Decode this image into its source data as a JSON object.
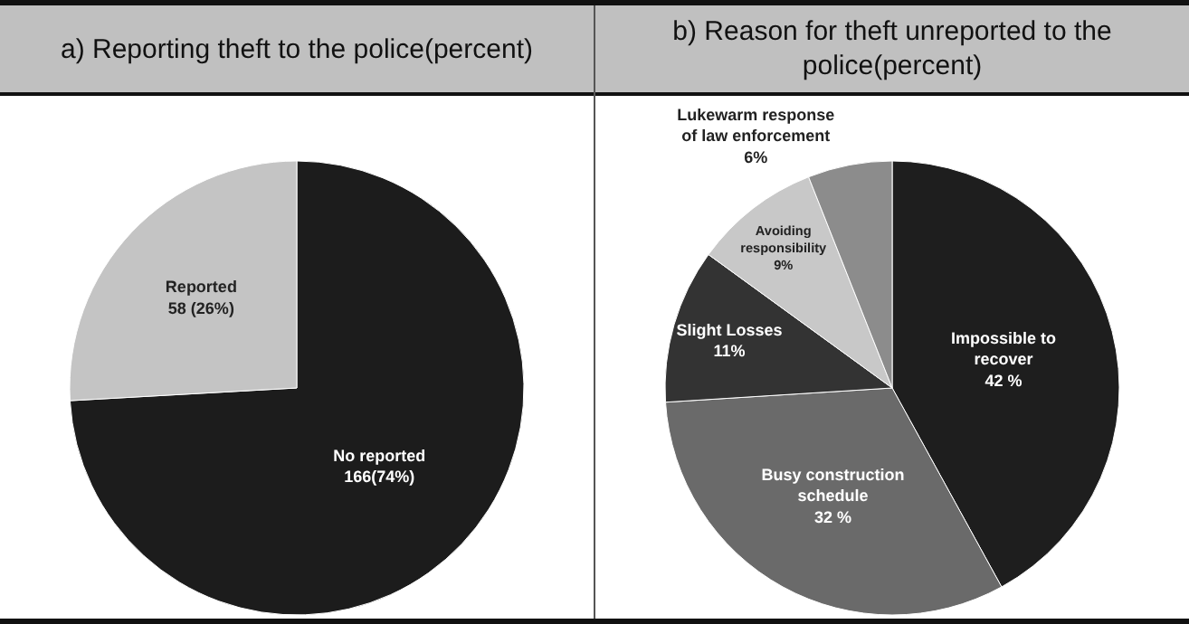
{
  "chart_data": [
    {
      "type": "pie",
      "title": "a) Reporting theft to the police(percent)",
      "categories": [
        "No reported",
        "Reported"
      ],
      "values": [
        166,
        58
      ],
      "value_labels": [
        "166(74%)",
        "58 (26%)"
      ],
      "colors": [
        "#1c1c1c",
        "#c4c4c4"
      ]
    },
    {
      "type": "pie",
      "title": "b) Reason for theft unreported to the police(percent)",
      "categories": [
        "Impossible to recover",
        "Busy construction schedule",
        "Slight Losses",
        "Avoiding responsibility",
        "Lukewarm response of law enforcement"
      ],
      "values": [
        42,
        32,
        11,
        9,
        6
      ],
      "value_labels": [
        "42 %",
        "32 %",
        "11%",
        "9%",
        "6%"
      ],
      "colors": [
        "#1e1e1e",
        "#6a6a6a",
        "#333333",
        "#c8c8c8",
        "#8c8c8c"
      ]
    }
  ]
}
